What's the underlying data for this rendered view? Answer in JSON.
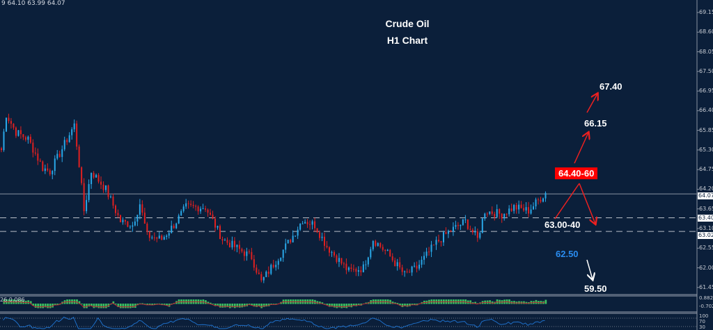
{
  "header": {
    "ohlc_readout": "9 64.10 63.99 64.07"
  },
  "chart_data": {
    "type": "candlestick",
    "title": "Crude Oil",
    "subtitle": "H1 Chart",
    "ylim": [
      61.2,
      69.4
    ],
    "y_ticks": [
      "69.15",
      "68.60",
      "68.05",
      "67.50",
      "66.95",
      "66.40",
      "65.85",
      "65.30",
      "64.75",
      "64.20",
      "63.65",
      "63.10",
      "62.55",
      "62.00",
      "61.45"
    ],
    "current_price": "64.07",
    "levels": [
      {
        "value": "63.40",
        "style": "dashed"
      },
      {
        "value": "63.02",
        "style": "dashed"
      }
    ],
    "close_keypoints": [
      [
        0,
        65.3
      ],
      [
        2,
        66.3
      ],
      [
        6,
        65.8
      ],
      [
        11,
        65.6
      ],
      [
        17,
        64.8
      ],
      [
        20,
        64.7
      ],
      [
        24,
        65.2
      ],
      [
        30,
        66.0
      ],
      [
        32,
        64.9
      ],
      [
        34,
        63.6
      ],
      [
        37,
        64.7
      ],
      [
        43,
        64.2
      ],
      [
        49,
        63.3
      ],
      [
        54,
        63.2
      ],
      [
        57,
        63.8
      ],
      [
        60,
        62.9
      ],
      [
        66,
        62.8
      ],
      [
        71,
        63.2
      ],
      [
        76,
        63.7
      ],
      [
        84,
        63.7
      ],
      [
        91,
        62.8
      ],
      [
        103,
        62.3
      ],
      [
        107,
        61.6
      ],
      [
        114,
        62.3
      ],
      [
        120,
        62.9
      ],
      [
        124,
        63.35
      ],
      [
        129,
        63.2
      ],
      [
        134,
        62.6
      ],
      [
        143,
        61.9
      ],
      [
        149,
        62.0
      ],
      [
        153,
        62.8
      ],
      [
        159,
        62.4
      ],
      [
        166,
        61.8
      ],
      [
        171,
        62.0
      ],
      [
        179,
        62.7
      ],
      [
        184,
        63.0
      ],
      [
        191,
        63.3
      ],
      [
        196,
        62.8
      ],
      [
        199,
        63.6
      ],
      [
        206,
        63.5
      ],
      [
        211,
        63.7
      ],
      [
        217,
        63.6
      ],
      [
        224,
        64.1
      ]
    ],
    "colors": {
      "up": "#2aa8e8",
      "down": "#e02020",
      "background": "#0b1f3a",
      "level_line": "#c8ccd4"
    },
    "macd": {
      "labels": [
        "26 0.086"
      ],
      "y_ticks": [
        "0.882",
        "-0.702"
      ],
      "hist_color": "#3cc060",
      "signal_color": "#c02030"
    },
    "rsi": {
      "y_ticks": [
        "100",
        "70",
        "30"
      ],
      "line_color": "#1e6fc8"
    }
  },
  "annotations": {
    "target_high": "67.40",
    "target_mid": "66.15",
    "resistance_zone": "64.40-60",
    "support_zone": "63.00-40",
    "support_break": "62.50",
    "target_low": "59.50",
    "colors": {
      "resistance_box": "#ff0000",
      "arrow_red": "#ee2020",
      "support_break": "#2a8cf0",
      "arrow_white": "#ffffff"
    }
  }
}
